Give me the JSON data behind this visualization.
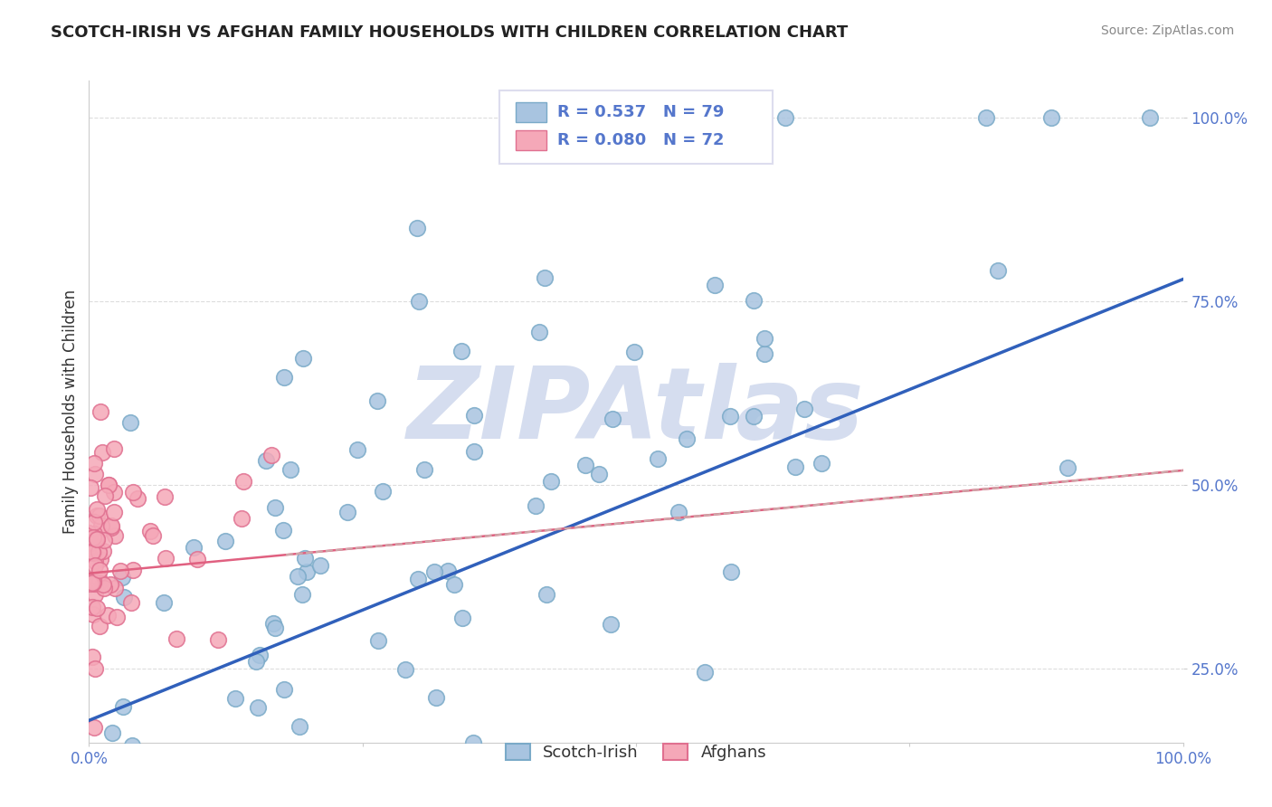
{
  "title": "SCOTCH-IRISH VS AFGHAN FAMILY HOUSEHOLDS WITH CHILDREN CORRELATION CHART",
  "source": "Source: ZipAtlas.com",
  "ylabel": "Family Households with Children",
  "xlim": [
    0.0,
    1.0
  ],
  "ylim": [
    0.15,
    1.05
  ],
  "xticks": [
    0.0,
    0.25,
    0.5,
    0.75,
    1.0
  ],
  "yticks": [
    0.25,
    0.5,
    0.75,
    1.0
  ],
  "xticklabels": [
    "0.0%",
    "",
    "",
    "",
    "100.0%"
  ],
  "yticklabels": [
    "25.0%",
    "50.0%",
    "75.0%",
    "100.0%"
  ],
  "scotch_irish_color": "#a8c4e0",
  "scotch_irish_edge": "#7aaac8",
  "afghan_color": "#f5a8b8",
  "afghan_edge": "#e07090",
  "scotch_irish_line_color": "#3060bb",
  "afghan_line_color": "#e06080",
  "afghan_line_dash": "#ccaaaa",
  "R_scotch": 0.537,
  "N_scotch": 79,
  "R_afghan": 0.08,
  "N_afghan": 72,
  "legend_label_scotch": "Scotch-Irish",
  "legend_label_afghan": "Afghans",
  "watermark": "ZIPAtlas",
  "watermark_color": "#d5ddef",
  "title_color": "#222222",
  "source_color": "#888888",
  "tick_color": "#5577cc",
  "grid_color": "#dddddd",
  "legend_box_color": "#ddddee"
}
